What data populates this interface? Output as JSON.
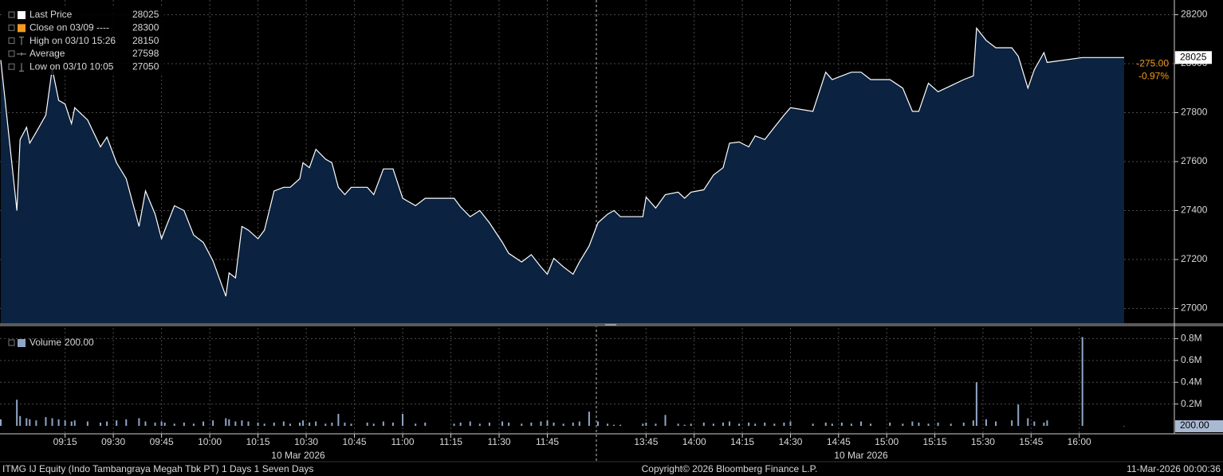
{
  "chart_data": [
    {
      "type": "area",
      "x": [
        "08:55",
        "09:00",
        "09:01",
        "09:03",
        "09:04",
        "09:06",
        "09:09",
        "09:11",
        "09:13",
        "09:15",
        "09:17",
        "09:18",
        "09:22",
        "09:26",
        "09:28",
        "09:31",
        "09:34",
        "09:38",
        "09:40",
        "09:43",
        "09:45",
        "09:46",
        "09:49",
        "09:52",
        "09:55",
        "09:58",
        "10:01",
        "10:05",
        "10:06",
        "10:08",
        "10:10",
        "10:12",
        "10:15",
        "10:17",
        "10:20",
        "10:23",
        "10:25",
        "10:28",
        "10:29",
        "10:31",
        "10:33",
        "10:36",
        "10:38",
        "10:40",
        "10:42",
        "10:44",
        "10:49",
        "10:51",
        "10:54",
        "10:57",
        "11:00",
        "11:04",
        "11:07",
        "11:16",
        "11:18",
        "11:21",
        "11:24",
        "11:27",
        "11:31",
        "11:33",
        "11:37",
        "11:40",
        "11:43",
        "11:45",
        "11:47",
        "11:50",
        "11:53",
        "11:55",
        "11:58",
        "13:30",
        "13:33",
        "13:35",
        "13:37",
        "13:44",
        "13:45",
        "13:48",
        "13:51",
        "13:55",
        "13:57",
        "13:59",
        "14:03",
        "14:06",
        "14:09",
        "14:11",
        "14:14",
        "14:17",
        "14:19",
        "14:22",
        "14:25",
        "14:28",
        "14:30",
        "14:37",
        "14:41",
        "14:43",
        "14:46",
        "14:49",
        "14:52",
        "14:55",
        "15:01",
        "15:05",
        "15:08",
        "15:10",
        "15:13",
        "15:16",
        "15:20",
        "15:24",
        "15:27",
        "15:28",
        "15:31",
        "15:34",
        "15:39",
        "15:41",
        "15:44",
        "15:46",
        "15:49",
        "15:50",
        "16:01",
        "16:14"
      ],
      "series": [
        {
          "name": "Last Price",
          "color": "#ffffff",
          "fill": "#0b2240",
          "values": [
            28015,
            27400,
            27690,
            27740,
            27675,
            27720,
            27790,
            27980,
            27850,
            27835,
            27755,
            27820,
            27770,
            27660,
            27700,
            27595,
            27530,
            27335,
            27480,
            27385,
            27285,
            27320,
            27420,
            27400,
            27300,
            27270,
            27195,
            27050,
            27145,
            27125,
            27335,
            27320,
            27285,
            27320,
            27480,
            27495,
            27495,
            27530,
            27595,
            27575,
            27650,
            27610,
            27595,
            27495,
            27465,
            27495,
            27495,
            27465,
            27570,
            27570,
            27450,
            27420,
            27450,
            27450,
            27415,
            27375,
            27400,
            27350,
            27270,
            27225,
            27190,
            27220,
            27170,
            27140,
            27205,
            27170,
            27140,
            27190,
            27255,
            27350,
            27385,
            27400,
            27375,
            27375,
            27455,
            27410,
            27465,
            27475,
            27450,
            27475,
            27485,
            27545,
            27575,
            27675,
            27680,
            27660,
            27705,
            27690,
            27740,
            27790,
            27820,
            27805,
            27965,
            27935,
            27950,
            27965,
            27965,
            27935,
            27935,
            27900,
            27805,
            27805,
            27920,
            27885,
            27910,
            27935,
            27950,
            28145,
            28095,
            28065,
            28065,
            28030,
            27900,
            27975,
            28045,
            28005,
            28025,
            28025
          ]
        }
      ],
      "xlim": [
        "08:55",
        "16:14"
      ],
      "break": [
        "12:00",
        "13:30"
      ],
      "xticks": [
        "09:15",
        "09:30",
        "09:45",
        "10:00",
        "10:15",
        "10:30",
        "10:45",
        "11:00",
        "11:15",
        "11:30",
        "11:45",
        "13:45",
        "14:00",
        "14:15",
        "14:30",
        "14:45",
        "15:00",
        "15:15",
        "15:30",
        "15:45",
        "16:00"
      ],
      "dates": [
        "10 Mar 2026",
        "10 Mar 2026"
      ],
      "ylim": [
        26940,
        28260
      ],
      "yticks": [
        27000,
        27200,
        27400,
        27600,
        27800,
        28000,
        28200
      ],
      "grid": true,
      "legend": [
        {
          "name": "Last Price",
          "value": 28025,
          "color": "#ffffff"
        },
        {
          "name": "Close on 03/09 ----",
          "value": 28300,
          "color": "#f39a1e"
        },
        {
          "name": "High on 03/10 15:26",
          "value": 28150,
          "color": "#9a9a9a"
        },
        {
          "name": "Average",
          "value": 27598,
          "color": "#9a9a9a"
        },
        {
          "name": "Low on 03/10 10:05",
          "value": 27050,
          "color": "#9a9a9a"
        }
      ],
      "change": {
        "value": -275,
        "label": "-275.00"
      },
      "change_pct": {
        "value": -0.97,
        "label": "-0.97%"
      },
      "change_color": "#f39a1e"
    },
    {
      "type": "bar",
      "x": [
        "08:55",
        "09:00",
        "09:01",
        "09:03",
        "09:04",
        "09:06",
        "09:09",
        "09:11",
        "09:13",
        "09:15",
        "09:17",
        "09:18",
        "09:22",
        "09:26",
        "09:28",
        "09:31",
        "09:34",
        "09:38",
        "09:40",
        "09:43",
        "09:45",
        "09:46",
        "09:49",
        "09:52",
        "09:55",
        "09:58",
        "10:01",
        "10:05",
        "10:06",
        "10:08",
        "10:10",
        "10:12",
        "10:15",
        "10:17",
        "10:20",
        "10:23",
        "10:25",
        "10:28",
        "10:29",
        "10:31",
        "10:33",
        "10:36",
        "10:38",
        "10:40",
        "10:42",
        "10:44",
        "10:49",
        "10:51",
        "10:54",
        "10:57",
        "11:00",
        "11:04",
        "11:07",
        "11:16",
        "11:18",
        "11:21",
        "11:24",
        "11:27",
        "11:31",
        "11:33",
        "11:37",
        "11:40",
        "11:43",
        "11:45",
        "11:47",
        "11:50",
        "11:53",
        "11:55",
        "11:58",
        "13:30",
        "13:33",
        "13:35",
        "13:37",
        "13:44",
        "13:45",
        "13:48",
        "13:51",
        "13:55",
        "13:57",
        "13:59",
        "14:03",
        "14:06",
        "14:09",
        "14:11",
        "14:14",
        "14:17",
        "14:19",
        "14:22",
        "14:25",
        "14:28",
        "14:30",
        "14:37",
        "14:41",
        "14:43",
        "14:46",
        "14:49",
        "14:52",
        "14:55",
        "15:01",
        "15:05",
        "15:08",
        "15:10",
        "15:13",
        "15:16",
        "15:20",
        "15:24",
        "15:27",
        "15:28",
        "15:31",
        "15:34",
        "15:39",
        "15:41",
        "15:44",
        "15:46",
        "15:49",
        "15:50",
        "16:01",
        "16:14"
      ],
      "series": [
        {
          "name": "Volume",
          "color": "#8fa6c8",
          "values": [
            60000,
            240000,
            90000,
            70000,
            60000,
            50000,
            80000,
            70000,
            60000,
            50000,
            40000,
            50000,
            40000,
            30000,
            40000,
            50000,
            60000,
            70000,
            40000,
            30000,
            40000,
            30000,
            20000,
            30000,
            20000,
            40000,
            50000,
            70000,
            60000,
            40000,
            50000,
            40000,
            30000,
            20000,
            30000,
            40000,
            20000,
            30000,
            50000,
            30000,
            40000,
            20000,
            30000,
            110000,
            30000,
            20000,
            30000,
            20000,
            40000,
            30000,
            110000,
            20000,
            30000,
            20000,
            30000,
            40000,
            20000,
            30000,
            40000,
            30000,
            20000,
            30000,
            40000,
            50000,
            30000,
            20000,
            30000,
            40000,
            130000,
            40000,
            20000,
            10000,
            10000,
            20000,
            30000,
            20000,
            100000,
            20000,
            10000,
            20000,
            30000,
            20000,
            30000,
            40000,
            20000,
            30000,
            20000,
            30000,
            20000,
            30000,
            40000,
            20000,
            30000,
            20000,
            30000,
            20000,
            40000,
            20000,
            30000,
            20000,
            40000,
            30000,
            20000,
            30000,
            20000,
            30000,
            50000,
            400000,
            60000,
            40000,
            50000,
            196000,
            70000,
            40000,
            30000,
            50000,
            815000,
            200
          ]
        }
      ],
      "legend_value": {
        "value": 200,
        "label": "200.00"
      },
      "ylim": [
        0,
        840000
      ],
      "yticks": [
        {
          "value": 200000,
          "label": "0.2M"
        },
        {
          "value": 400000,
          "label": "0.4M"
        },
        {
          "value": 600000,
          "label": "0.6M"
        },
        {
          "value": 800000,
          "label": "0.8M"
        }
      ],
      "grid": true
    }
  ],
  "footer": {
    "left": "ITMG IJ Equity (Indo Tambangraya Megah Tbk PT) 1 Days 1 Seven Days",
    "center": "Copyright© 2026 Bloomberg Finance L.P.",
    "right": "11-Mar-2026 00:00:36"
  }
}
